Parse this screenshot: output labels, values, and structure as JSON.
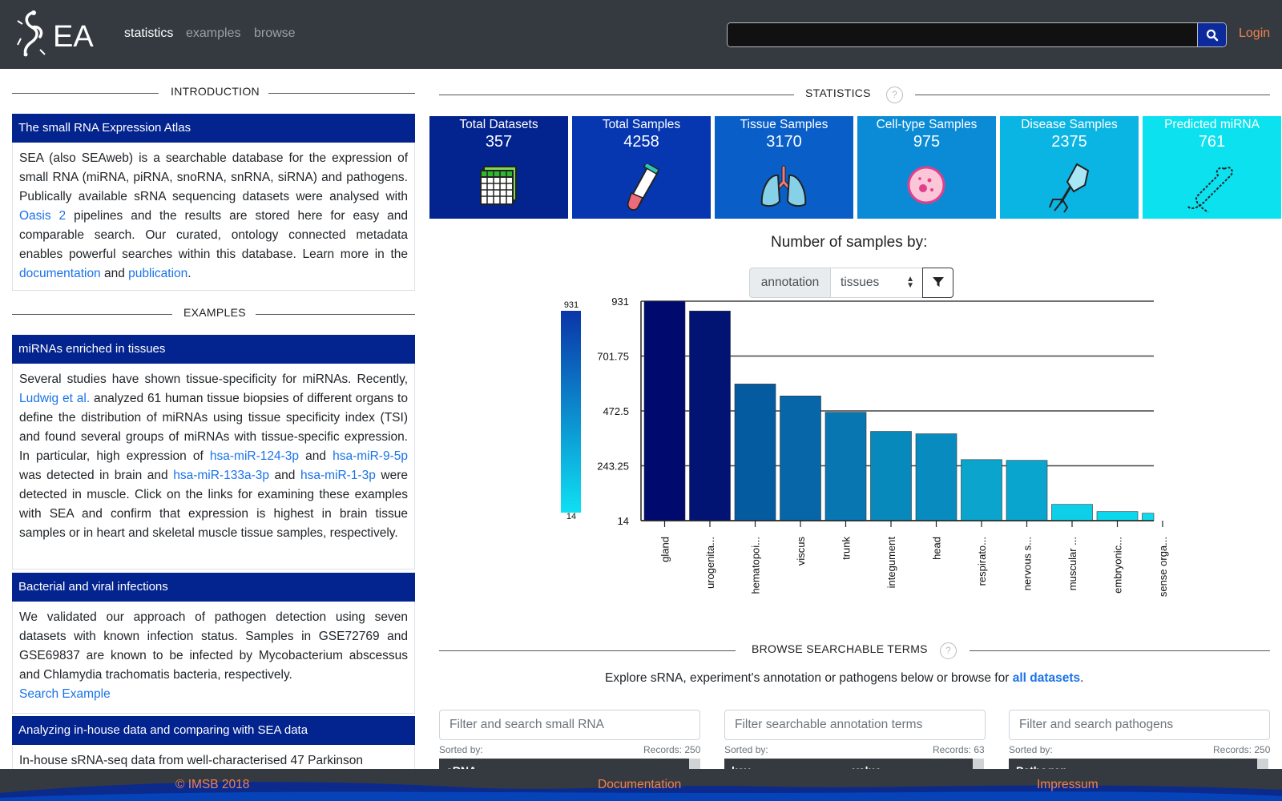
{
  "nav": {
    "brand": "EA",
    "links": [
      "statistics",
      "examples",
      "browse"
    ],
    "search_placeholder": "",
    "login": "Login"
  },
  "intro": {
    "section_label": "INTRODUCTION",
    "card_title": "The small RNA Expression Atlas",
    "text_1": "SEA (also SEAweb) is a searchable database for the expression of small RNA (miRNA, piRNA, snoRNA, snRNA, siRNA) and pathogens. Publically available sRNA sequencing datasets were analysed with ",
    "link_oasis": "Oasis 2",
    "text_2": " pipelines and the results are stored here for easy and comparable search. Our curated, ontology connected metadata enables powerful searches within this database. Learn more in the ",
    "link_documentation": "documentation",
    "text_3": " and ",
    "link_publication": "publication",
    "text_4": "."
  },
  "examples": {
    "section_label": "EXAMPLES",
    "card1": {
      "title": "miRNAs enriched in tissues",
      "t1": "Several studies have shown tissue-specificity for miRNAs. Recently, ",
      "l1": "Ludwig et al.",
      "t2": " analyzed 61 human tissue biopsies of different organs to define the distribution of miRNAs using tissue specificity index (TSI) and found several groups of miRNAs with tissue-specific expression. In particular, high expression of ",
      "l2": "hsa-miR-124-3p",
      "t3": " and ",
      "l3": "hsa-miR-9-5p",
      "t4": " was detected in brain and ",
      "l4": "hsa-miR-133a-3p",
      "t5": " and ",
      "l5": "hsa-miR-1-3p",
      "t6": " were detected in muscle. Click on the links for examining these examples with SEA and confirm that expression is highest in brain tissue samples or in heart and skeletal muscle tissue samples, respectively."
    },
    "card2": {
      "title": "Bacterial and viral infections",
      "text": "We validated our approach of pathogen detection using seven datasets with known infection status. Samples in GSE72769 and GSE69837 are known to be infected by Mycobacterium abscessus and Chlamydia trachomatis bacteria, respectively.",
      "link": "Search Example"
    },
    "card3": {
      "title": "Analyzing in-house data and comparing with SEA data",
      "text": "In-house sRNA-seq data from well-characterised 47 Parkinson"
    }
  },
  "statistics": {
    "section_label": "STATISTICS",
    "help": "?",
    "cards": [
      {
        "title": "Total Datasets",
        "value": "357",
        "color": "#03238e",
        "icon": "table-icon"
      },
      {
        "title": "Total Samples",
        "value": "4258",
        "color": "#0637b0",
        "icon": "test-tube-icon"
      },
      {
        "title": "Tissue Samples",
        "value": "3170",
        "color": "#0a5ec8",
        "icon": "lungs-icon"
      },
      {
        "title": "Cell-type Samples",
        "value": "975",
        "color": "#0b8bd6",
        "icon": "cell-icon"
      },
      {
        "title": "Disease Samples",
        "value": "2375",
        "color": "#0ab5e3",
        "icon": "virus-icon"
      },
      {
        "title": "Predicted miRNA",
        "value": "761",
        "color": "#0be1ef",
        "icon": "mirna-hairpin-icon"
      }
    ]
  },
  "chart_controls": {
    "title": "Number of samples by:",
    "label": "annotation",
    "selected": "tissues"
  },
  "chart_data": {
    "type": "bar",
    "categories": [
      "gland",
      "urogenita...",
      "hematopoi...",
      "viscus",
      "trunk",
      "integument",
      "head",
      "respirato...",
      "nervous s...",
      "muscular ...",
      "embryonic...",
      "sense orga..."
    ],
    "values": [
      931,
      890,
      585,
      535,
      467,
      387,
      377,
      269,
      266,
      82,
      52,
      45
    ],
    "yticks": [
      "14",
      "243.25",
      "472.5",
      "701.75",
      "931"
    ],
    "ylim": [
      14,
      931
    ],
    "colorbar": {
      "min": "14",
      "max": "931",
      "low_color": "#0ee0f2",
      "high_color": "#000a6e"
    },
    "grid": true
  },
  "browse": {
    "section_label": "BROWSE SEARCHABLE TERMS",
    "help": "?",
    "text": "Explore sRNA, experiment's annotation or pathogens below or browse for ",
    "link": "all datasets",
    "dot": ".",
    "tables": [
      {
        "placeholder": "Filter and search small RNA",
        "sorted": "Sorted by:",
        "records": "Records: 250",
        "headers": [
          "sRNA"
        ]
      },
      {
        "placeholder": "Filter searchable annotation terms",
        "sorted": "Sorted by:",
        "records": "Records: 63",
        "headers": [
          "key",
          "value"
        ]
      },
      {
        "placeholder": "Filter and search pathogens",
        "sorted": "Sorted by:",
        "records": "Records: 250",
        "headers": [
          "Pathogen"
        ]
      }
    ]
  },
  "footer": {
    "copyright": "© IMSB 2018",
    "documentation": "Documentation",
    "impressum": "Impressum"
  }
}
